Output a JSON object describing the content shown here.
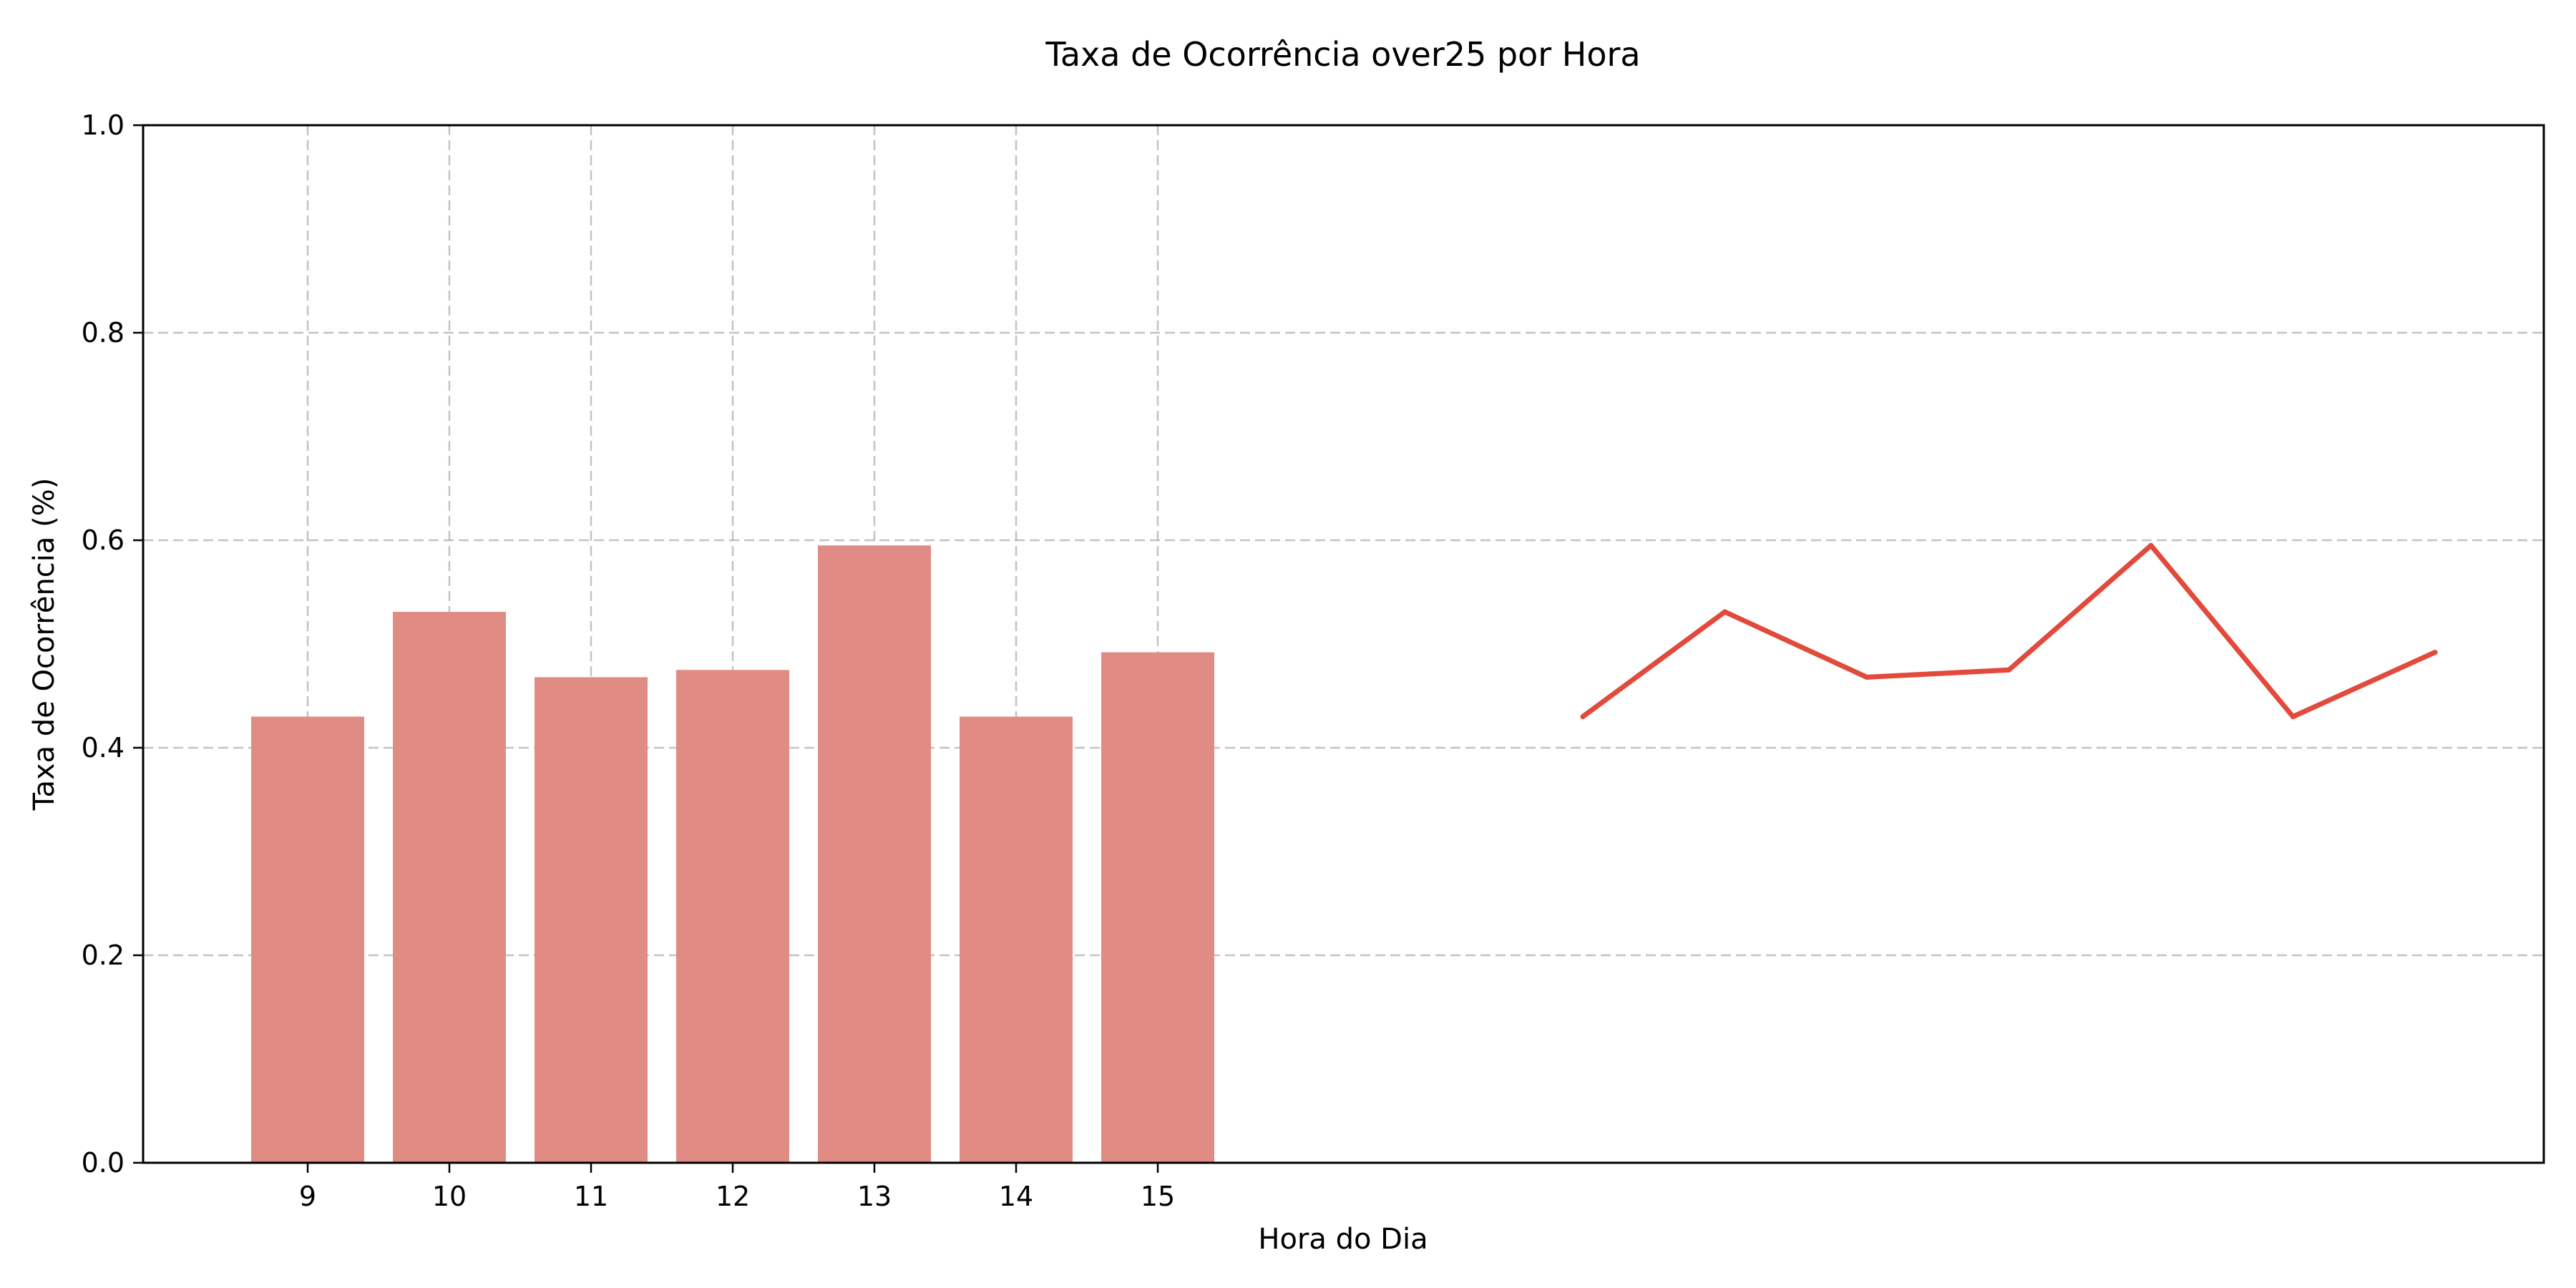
{
  "chart_data": {
    "type": "bar",
    "title": "Taxa de Ocorrência over25 por Hora",
    "xlabel": "Hora do Dia",
    "ylabel": "Taxa de Ocorrência (%)",
    "categories": [
      "9",
      "10",
      "11",
      "12",
      "13",
      "14",
      "15"
    ],
    "ylim": [
      0,
      1.0
    ],
    "yticks": [
      "0.0",
      "0.2",
      "0.4",
      "0.6",
      "0.8",
      "1.0"
    ],
    "grid": true,
    "series": [
      {
        "type": "bar",
        "values": [
          0.43,
          0.531,
          0.468,
          0.475,
          0.595,
          0.43,
          0.492
        ],
        "color": "#e08c84"
      },
      {
        "type": "line",
        "values": [
          0.43,
          0.531,
          0.468,
          0.475,
          0.595,
          0.43,
          0.492
        ],
        "color": "#e24a3b"
      }
    ]
  }
}
